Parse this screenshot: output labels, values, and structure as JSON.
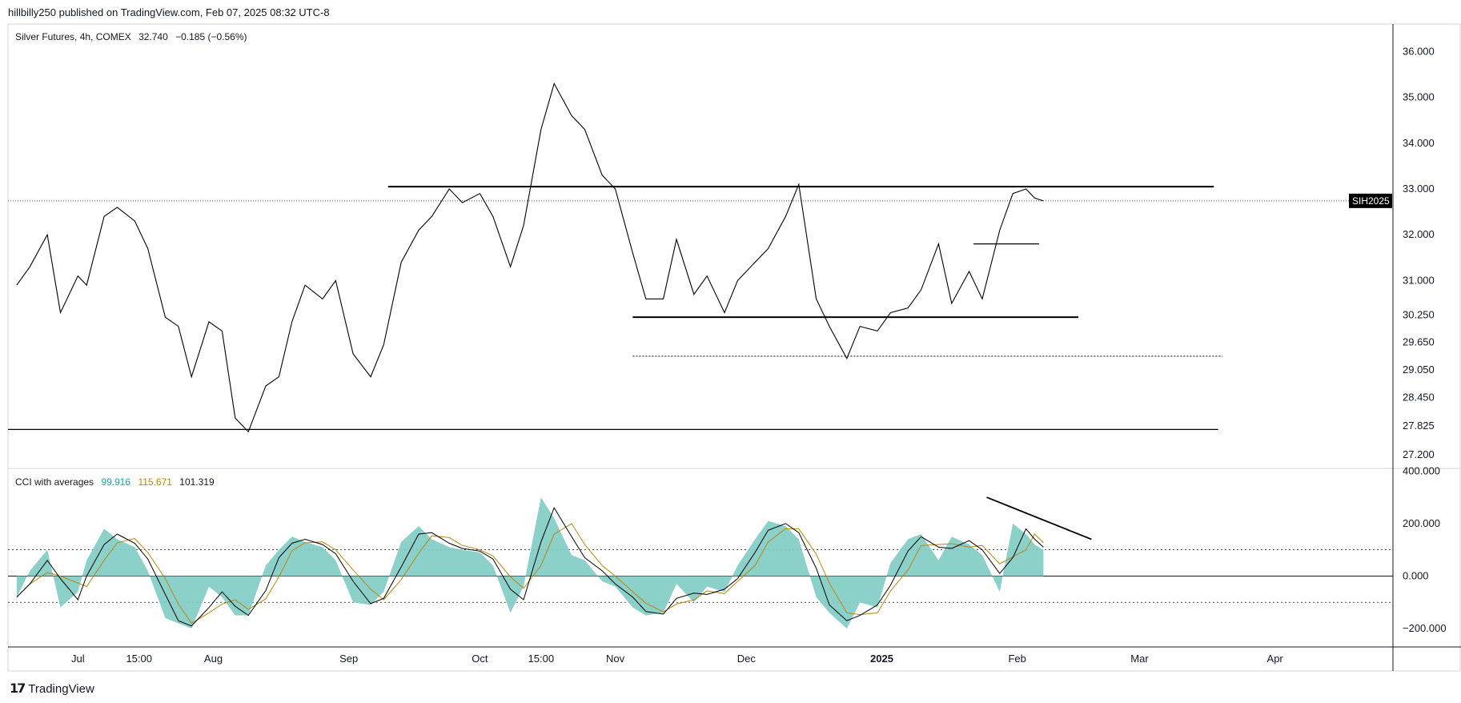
{
  "header": {
    "publisher_line": "hillbilly250 published on TradingView.com, Feb 07, 2025 08:32 UTC-8"
  },
  "main_legend": {
    "symbol": "Silver Futures, 4h, COMEX",
    "last": "32.740",
    "change": "−0.185 (−0.56%)"
  },
  "cci_legend": {
    "name": "CCI with averages",
    "v1": "99.916",
    "v2": "115.671",
    "v3": "101.319",
    "v1_color": "#26a69a",
    "v2_color": "#b8860b",
    "v3_color": "#131722"
  },
  "footer": {
    "brand": "TradingView",
    "brand_mark": "𝟭𝟳"
  },
  "colors": {
    "price_line": "#000000",
    "cci_fill": "#80cbc4",
    "cci_avg1": "#b8860b",
    "cci_avg2": "#000000",
    "badge_bg": "#000000",
    "badge_text": "#ffffff"
  },
  "chart_data": [
    {
      "type": "line",
      "title": "Silver Futures, 4h, COMEX",
      "price_axis_ticks": [
        "36.000",
        "35.000",
        "34.000",
        "33.000",
        "32.000",
        "31.000",
        "30.250",
        "29.650",
        "29.050",
        "28.450",
        "27.825",
        "27.200"
      ],
      "price_axis_values": [
        36.0,
        35.0,
        34.0,
        33.0,
        32.0,
        31.0,
        30.25,
        29.65,
        29.05,
        28.45,
        27.825,
        27.2
      ],
      "time_axis_labels": [
        "Jul",
        "15:00",
        "Aug",
        "Sep",
        "Oct",
        "15:00",
        "Nov",
        "Dec",
        "2025",
        "Feb",
        "Mar",
        "Apr"
      ],
      "time_axis_dates": [
        "2024-07-01",
        "2024-07-15",
        "2024-08-01",
        "2024-09-01",
        "2024-10-01",
        "2024-10-15",
        "2024-11-01",
        "2024-12-01",
        "2025-01-01",
        "2025-02-01",
        "2025-03-01",
        "2025-04-01"
      ],
      "current_price_label": "SIH2025",
      "current_price": 32.74,
      "x": [
        "2024-06-17",
        "2024-06-20",
        "2024-06-24",
        "2024-06-27",
        "2024-07-01",
        "2024-07-03",
        "2024-07-07",
        "2024-07-10",
        "2024-07-14",
        "2024-07-17",
        "2024-07-21",
        "2024-07-24",
        "2024-07-27",
        "2024-07-31",
        "2024-08-03",
        "2024-08-06",
        "2024-08-09",
        "2024-08-13",
        "2024-08-16",
        "2024-08-19",
        "2024-08-22",
        "2024-08-26",
        "2024-08-29",
        "2024-09-02",
        "2024-09-06",
        "2024-09-09",
        "2024-09-13",
        "2024-09-17",
        "2024-09-20",
        "2024-09-24",
        "2024-09-27",
        "2024-10-01",
        "2024-10-04",
        "2024-10-08",
        "2024-10-11",
        "2024-10-15",
        "2024-10-18",
        "2024-10-22",
        "2024-10-25",
        "2024-10-29",
        "2024-11-01",
        "2024-11-05",
        "2024-11-08",
        "2024-11-12",
        "2024-11-15",
        "2024-11-19",
        "2024-11-22",
        "2024-11-26",
        "2024-11-29",
        "2024-12-03",
        "2024-12-06",
        "2024-12-10",
        "2024-12-13",
        "2024-12-17",
        "2024-12-20",
        "2024-12-24",
        "2024-12-27",
        "2024-12-31",
        "2025-01-03",
        "2025-01-07",
        "2025-01-10",
        "2025-01-14",
        "2025-01-17",
        "2025-01-21",
        "2025-01-24",
        "2025-01-28",
        "2025-01-31",
        "2025-02-03",
        "2025-02-05",
        "2025-02-07"
      ],
      "values": [
        30.9,
        31.3,
        32.0,
        30.3,
        31.1,
        30.9,
        32.4,
        32.6,
        32.3,
        31.7,
        30.2,
        30.0,
        28.9,
        30.1,
        29.9,
        28.0,
        27.7,
        28.7,
        28.9,
        30.1,
        30.9,
        30.6,
        31.0,
        29.4,
        28.9,
        29.6,
        31.4,
        32.1,
        32.4,
        33.0,
        32.7,
        32.9,
        32.4,
        31.3,
        32.2,
        34.3,
        35.3,
        34.6,
        34.3,
        33.3,
        33.0,
        31.6,
        30.6,
        30.6,
        31.9,
        30.7,
        31.1,
        30.3,
        31.0,
        31.4,
        31.7,
        32.4,
        33.1,
        30.6,
        30.0,
        29.3,
        30.0,
        29.9,
        30.3,
        30.4,
        30.8,
        31.8,
        30.5,
        31.2,
        30.6,
        32.1,
        32.9,
        33.0,
        32.8,
        32.74
      ],
      "horizontal_levels": [
        33.05,
        30.2,
        29.35,
        27.75,
        31.8
      ]
    },
    {
      "type": "area",
      "title": "CCI with averages",
      "cci_axis_ticks": [
        "400.000",
        "200.000",
        "0.000",
        "−200.000"
      ],
      "cci_axis_values": [
        400,
        200,
        0,
        -200
      ],
      "reference_lines": [
        100,
        0,
        -100
      ],
      "x": [
        "2024-06-17",
        "2024-06-20",
        "2024-06-24",
        "2024-06-27",
        "2024-07-01",
        "2024-07-03",
        "2024-07-07",
        "2024-07-10",
        "2024-07-14",
        "2024-07-17",
        "2024-07-21",
        "2024-07-24",
        "2024-07-27",
        "2024-07-31",
        "2024-08-03",
        "2024-08-06",
        "2024-08-09",
        "2024-08-13",
        "2024-08-16",
        "2024-08-19",
        "2024-08-22",
        "2024-08-26",
        "2024-08-29",
        "2024-09-02",
        "2024-09-06",
        "2024-09-09",
        "2024-09-13",
        "2024-09-17",
        "2024-09-20",
        "2024-09-24",
        "2024-09-27",
        "2024-10-01",
        "2024-10-04",
        "2024-10-08",
        "2024-10-11",
        "2024-10-15",
        "2024-10-18",
        "2024-10-22",
        "2024-10-25",
        "2024-10-29",
        "2024-11-01",
        "2024-11-05",
        "2024-11-08",
        "2024-11-12",
        "2024-11-15",
        "2024-11-19",
        "2024-11-22",
        "2024-11-26",
        "2024-11-29",
        "2024-12-03",
        "2024-12-06",
        "2024-12-10",
        "2024-12-13",
        "2024-12-17",
        "2024-12-20",
        "2024-12-24",
        "2024-12-27",
        "2024-12-31",
        "2025-01-03",
        "2025-01-07",
        "2025-01-10",
        "2025-01-14",
        "2025-01-17",
        "2025-01-21",
        "2025-01-24",
        "2025-01-28",
        "2025-01-31",
        "2025-02-03",
        "2025-02-05",
        "2025-02-07"
      ],
      "values": [
        -80,
        20,
        100,
        -120,
        -60,
        60,
        180,
        140,
        110,
        20,
        -160,
        -180,
        -200,
        -40,
        -80,
        -150,
        -150,
        40,
        100,
        150,
        130,
        110,
        60,
        -100,
        -110,
        -60,
        130,
        190,
        140,
        110,
        100,
        90,
        40,
        -140,
        -40,
        300,
        220,
        80,
        60,
        -20,
        -40,
        -120,
        -150,
        -140,
        -30,
        -100,
        -40,
        -60,
        40,
        140,
        210,
        190,
        140,
        -80,
        -140,
        -200,
        -100,
        -120,
        50,
        140,
        160,
        60,
        150,
        120,
        80,
        -60,
        200,
        160,
        120,
        100
      ],
      "avg1_last": 115.671,
      "avg2_last": 101.319
    }
  ]
}
